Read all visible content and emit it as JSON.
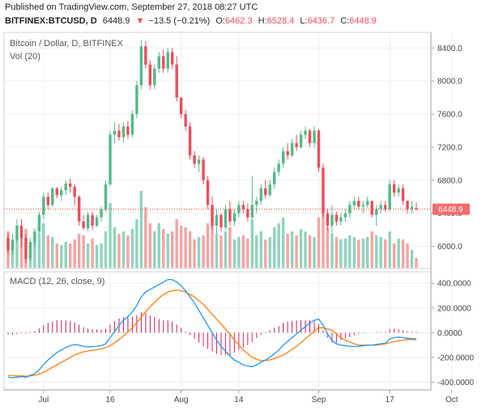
{
  "header": {
    "published": "Published on TradingView.com, September 27, 2018 08:27 UTC",
    "symbol": "BITFINEX:BTCUSD, D",
    "last": "6448.9",
    "change": "−13.5 (−0.21%)",
    "o_label": "O:",
    "o": "6462.3",
    "h_label": "H:",
    "h": "6528.4",
    "l_label": "L:",
    "l": "6436.7",
    "c_label": "C:",
    "c": "6448.9"
  },
  "colors": {
    "up": "#53b987",
    "down": "#eb4d5c",
    "vol_up": "#8fd3bd",
    "vol_down": "#f5a3a3",
    "macd": "#2196f3",
    "signal": "#ff7f0e",
    "hist_pos": "#c2185b",
    "hist_neg": "#e91e63",
    "grid": "#eeeeee",
    "price_line": "#e53935",
    "price_tag_bg": "#f36c6c"
  },
  "chart_data": [
    {
      "type": "candlestick",
      "title": "Bitcoin / Dollar, D, BITFINEX",
      "volume_label": "Vol (20)",
      "ylim": [
        5750,
        8550
      ],
      "yticks": [
        "8400.0",
        "8000.0",
        "7600.0",
        "7200.0",
        "6800.0",
        "6400.0",
        "6000.0"
      ],
      "last_price": 6448.9,
      "last_price_label": "6448.9",
      "xticks": [
        "Jul",
        "16",
        "Aug",
        "14",
        "Sep",
        "17",
        "Oct"
      ],
      "xtick_dates": [
        "2018-07-01",
        "2018-07-16",
        "2018-08-01",
        "2018-08-14",
        "2018-09-01",
        "2018-09-17",
        "2018-10-01"
      ],
      "first_date": "2018-06-23",
      "ohlc": [
        [
          6100,
          6150,
          5900,
          5950
        ],
        [
          5950,
          6150,
          5900,
          6080
        ],
        [
          6080,
          6330,
          6050,
          6250
        ],
        [
          6250,
          6330,
          5980,
          6100
        ],
        [
          6100,
          6150,
          5800,
          5850
        ],
        [
          5850,
          6100,
          5820,
          6050
        ],
        [
          6050,
          6220,
          5990,
          6180
        ],
        [
          6180,
          6420,
          6150,
          6380
        ],
        [
          6380,
          6650,
          6330,
          6600
        ],
        [
          6600,
          6650,
          6450,
          6500
        ],
        [
          6500,
          6720,
          6480,
          6700
        ],
        [
          6700,
          6720,
          6580,
          6620
        ],
        [
          6620,
          6720,
          6550,
          6680
        ],
        [
          6680,
          6800,
          6620,
          6760
        ],
        [
          6760,
          6820,
          6650,
          6720
        ],
        [
          6720,
          6760,
          6500,
          6600
        ],
        [
          6600,
          6620,
          6250,
          6300
        ],
        [
          6300,
          6380,
          6200,
          6220
        ],
        [
          6220,
          6420,
          6180,
          6380
        ],
        [
          6380,
          6420,
          6200,
          6250
        ],
        [
          6250,
          6380,
          6230,
          6350
        ],
        [
          6350,
          6480,
          6300,
          6450
        ],
        [
          6450,
          6800,
          6420,
          6750
        ],
        [
          6750,
          7400,
          6720,
          7350
        ],
        [
          7350,
          7500,
          7250,
          7400
        ],
        [
          7400,
          7480,
          7280,
          7320
        ],
        [
          7320,
          7500,
          7250,
          7450
        ],
        [
          7450,
          7520,
          7300,
          7350
        ],
        [
          7350,
          7650,
          7320,
          7600
        ],
        [
          7600,
          8000,
          7550,
          7950
        ],
        [
          7950,
          8500,
          7900,
          8420
        ],
        [
          8420,
          8480,
          8150,
          8200
        ],
        [
          8200,
          8250,
          7900,
          7950
        ],
        [
          7950,
          8200,
          7900,
          8150
        ],
        [
          8150,
          8350,
          8100,
          8300
        ],
        [
          8300,
          8380,
          8100,
          8150
        ],
        [
          8150,
          8400,
          8100,
          8350
        ],
        [
          8350,
          8400,
          8150,
          8200
        ],
        [
          8200,
          8300,
          7750,
          7800
        ],
        [
          7800,
          7800,
          7550,
          7600
        ],
        [
          7600,
          7650,
          7400,
          7450
        ],
        [
          7450,
          7500,
          7050,
          7100
        ],
        [
          7100,
          7150,
          6950,
          7000
        ],
        [
          7000,
          7100,
          6900,
          7050
        ],
        [
          7050,
          7080,
          6750,
          6800
        ],
        [
          6800,
          6850,
          6450,
          6500
        ],
        [
          6500,
          6600,
          6200,
          6250
        ],
        [
          6250,
          6450,
          6150,
          6380
        ],
        [
          6380,
          6400,
          6180,
          6230
        ],
        [
          6230,
          6500,
          6200,
          6450
        ],
        [
          6450,
          6550,
          6250,
          6300
        ],
        [
          6300,
          6450,
          6250,
          6400
        ],
        [
          6400,
          6550,
          6350,
          6500
        ],
        [
          6500,
          6550,
          6400,
          6450
        ],
        [
          6450,
          6520,
          6300,
          6350
        ],
        [
          6350,
          6850,
          6330,
          6500
        ],
        [
          6500,
          6600,
          6400,
          6550
        ],
        [
          6550,
          6750,
          6500,
          6700
        ],
        [
          6700,
          6800,
          6580,
          6620
        ],
        [
          6620,
          6800,
          6600,
          6750
        ],
        [
          6750,
          6950,
          6700,
          6900
        ],
        [
          6900,
          7050,
          6850,
          7000
        ],
        [
          7000,
          7200,
          6950,
          7150
        ],
        [
          7150,
          7250,
          7050,
          7100
        ],
        [
          7100,
          7300,
          7080,
          7250
        ],
        [
          7250,
          7350,
          7150,
          7200
        ],
        [
          7200,
          7400,
          7180,
          7350
        ],
        [
          7350,
          7450,
          7300,
          7400
        ],
        [
          7400,
          7420,
          7200,
          7250
        ],
        [
          7250,
          7450,
          7200,
          7400
        ],
        [
          7400,
          7420,
          6900,
          6950
        ],
        [
          6950,
          7000,
          6350,
          6400
        ],
        [
          6400,
          6450,
          6200,
          6250
        ],
        [
          6250,
          6500,
          6150,
          6380
        ],
        [
          6380,
          6420,
          6250,
          6300
        ],
        [
          6300,
          6400,
          6250,
          6350
        ],
        [
          6350,
          6450,
          6300,
          6400
        ],
        [
          6400,
          6550,
          6350,
          6500
        ],
        [
          6500,
          6600,
          6450,
          6550
        ],
        [
          6550,
          6600,
          6450,
          6480
        ],
        [
          6480,
          6550,
          6400,
          6500
        ],
        [
          6500,
          6600,
          6470,
          6550
        ],
        [
          6550,
          6550,
          6350,
          6380
        ],
        [
          6380,
          6500,
          6250,
          6450
        ],
        [
          6450,
          6550,
          6400,
          6500
        ],
        [
          6500,
          6550,
          6420,
          6450
        ],
        [
          6450,
          6800,
          6420,
          6750
        ],
        [
          6750,
          6800,
          6600,
          6650
        ],
        [
          6650,
          6750,
          6600,
          6700
        ],
        [
          6700,
          6750,
          6500,
          6550
        ],
        [
          6550,
          6550,
          6400,
          6450
        ],
        [
          6450,
          6550,
          6400,
          6480
        ],
        [
          6462.3,
          6528.4,
          6436.7,
          6448.9
        ]
      ],
      "volume": [
        45,
        30,
        38,
        40,
        48,
        32,
        35,
        42,
        55,
        40,
        38,
        30,
        28,
        32,
        30,
        35,
        42,
        40,
        30,
        36,
        28,
        30,
        45,
        80,
        50,
        42,
        45,
        40,
        48,
        60,
        95,
        75,
        55,
        45,
        55,
        48,
        42,
        45,
        60,
        52,
        50,
        45,
        35,
        38,
        40,
        55,
        70,
        42,
        40,
        45,
        50,
        35,
        38,
        40,
        36,
        60,
        40,
        45,
        35,
        38,
        50,
        55,
        62,
        42,
        45,
        40,
        48,
        45,
        40,
        38,
        62,
        75,
        50,
        42,
        38,
        35,
        36,
        40,
        38,
        35,
        36,
        38,
        45,
        40,
        38,
        35,
        45,
        30,
        36,
        35,
        30,
        22,
        12
      ]
    },
    {
      "type": "line",
      "title": "MACD (12, 26, close, 9)",
      "ylim": [
        -450,
        480
      ],
      "yticks": [
        "400.0000",
        "200.0000",
        "0.0000",
        "-200.0000",
        "-400.0000"
      ],
      "series": [
        {
          "name": "MACD",
          "values": [
            -360,
            -365,
            -360,
            -355,
            -360,
            -345,
            -330,
            -300,
            -260,
            -220,
            -190,
            -160,
            -140,
            -120,
            -105,
            -95,
            -100,
            -110,
            -115,
            -112,
            -110,
            -105,
            -90,
            -40,
            10,
            60,
            100,
            130,
            170,
            220,
            290,
            330,
            350,
            370,
            390,
            410,
            430,
            430,
            410,
            380,
            340,
            290,
            240,
            180,
            120,
            60,
            0,
            -60,
            -110,
            -150,
            -190,
            -220,
            -240,
            -260,
            -270,
            -275,
            -260,
            -240,
            -220,
            -200,
            -170,
            -140,
            -100,
            -70,
            -40,
            -10,
            20,
            50,
            80,
            100,
            110,
            60,
            -10,
            -60,
            -90,
            -100,
            -105,
            -110,
            -112,
            -110,
            -105,
            -100,
            -100,
            -95,
            -90,
            -85,
            -50,
            -40,
            -35,
            -40,
            -45,
            -48,
            -50
          ]
        },
        {
          "name": "Signal",
          "values": [
            -345,
            -348,
            -350,
            -350,
            -352,
            -350,
            -345,
            -335,
            -320,
            -300,
            -280,
            -260,
            -240,
            -220,
            -200,
            -180,
            -165,
            -155,
            -148,
            -142,
            -136,
            -130,
            -122,
            -105,
            -82,
            -55,
            -25,
            5,
            40,
            80,
            125,
            170,
            210,
            245,
            280,
            310,
            330,
            340,
            345,
            340,
            330,
            310,
            290,
            260,
            230,
            190,
            150,
            110,
            70,
            30,
            -10,
            -60,
            -100,
            -140,
            -170,
            -200,
            -215,
            -225,
            -225,
            -220,
            -210,
            -195,
            -180,
            -160,
            -135,
            -110,
            -80,
            -50,
            -20,
            10,
            40,
            40,
            30,
            20,
            -10,
            -40,
            -60,
            -75,
            -90,
            -100,
            -100,
            -100,
            -100,
            -100,
            -95,
            -90,
            -80,
            -72,
            -65,
            -60,
            -55,
            -55,
            -55
          ]
        },
        {
          "name": "Histogram",
          "values": [
            -15,
            -17,
            -10,
            -5,
            -8,
            5,
            15,
            35,
            60,
            80,
            90,
            100,
            100,
            100,
            95,
            85,
            65,
            45,
            33,
            30,
            26,
            25,
            32,
            65,
            92,
            115,
            125,
            125,
            130,
            140,
            165,
            160,
            140,
            125,
            110,
            100,
            100,
            90,
            65,
            40,
            10,
            -20,
            -50,
            -80,
            -110,
            -130,
            -150,
            -170,
            -180,
            -180,
            -180,
            -160,
            -140,
            -120,
            -100,
            -75,
            -45,
            -15,
            5,
            20,
            40,
            55,
            80,
            90,
            95,
            100,
            100,
            100,
            100,
            90,
            70,
            20,
            -40,
            -80,
            -80,
            -60,
            -45,
            -35,
            -22,
            -10,
            -5,
            0,
            0,
            5,
            5,
            5,
            30,
            32,
            30,
            20,
            10,
            7,
            5
          ]
        }
      ]
    }
  ]
}
